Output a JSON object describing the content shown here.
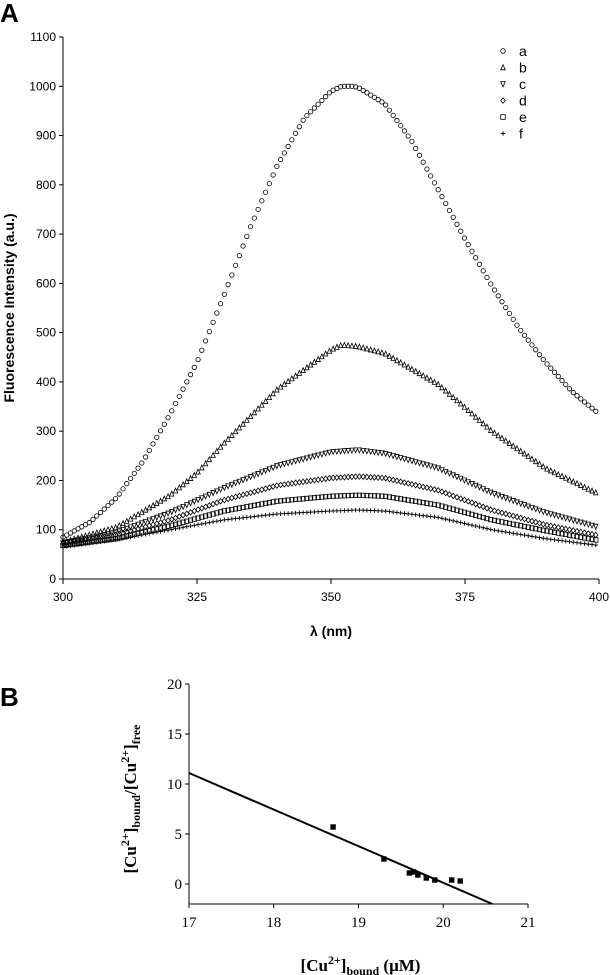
{
  "chart_data": [
    {
      "panel": "A",
      "type": "scatter",
      "xlabel": "λ (nm)",
      "ylabel": "Fluorescence Intensity (a.u.)",
      "xlim": [
        300,
        400
      ],
      "ylim": [
        0,
        1100
      ],
      "xticks": [
        300,
        325,
        350,
        375,
        400
      ],
      "yticks": [
        0,
        100,
        200,
        300,
        400,
        500,
        600,
        700,
        800,
        900,
        1000,
        1100
      ],
      "grid": false,
      "legend_position": "top-right",
      "series": [
        {
          "name": "a",
          "marker": "circle",
          "x": [
            300,
            305,
            310,
            315,
            320,
            325,
            330,
            335,
            340,
            345,
            350,
            352,
            354,
            355,
            360,
            365,
            370,
            375,
            380,
            385,
            390,
            395,
            400
          ],
          "y": [
            85,
            115,
            165,
            240,
            335,
            440,
            575,
            715,
            840,
            935,
            990,
            1000,
            1000,
            998,
            965,
            890,
            790,
            690,
            595,
            510,
            440,
            380,
            335
          ]
        },
        {
          "name": "b",
          "marker": "triangle-up",
          "x": [
            300,
            310,
            320,
            325,
            330,
            340,
            350,
            352,
            355,
            360,
            370,
            375,
            380,
            390,
            400
          ],
          "y": [
            75,
            105,
            170,
            215,
            275,
            385,
            465,
            475,
            472,
            458,
            395,
            348,
            300,
            225,
            172
          ]
        },
        {
          "name": "c",
          "marker": "triangle-down",
          "x": [
            300,
            310,
            320,
            330,
            340,
            350,
            355,
            360,
            370,
            380,
            390,
            400
          ],
          "y": [
            73,
            95,
            135,
            185,
            230,
            258,
            262,
            255,
            225,
            175,
            135,
            105
          ]
        },
        {
          "name": "d",
          "marker": "diamond",
          "x": [
            300,
            310,
            320,
            330,
            340,
            350,
            355,
            360,
            370,
            380,
            390,
            400
          ],
          "y": [
            72,
            90,
            120,
            160,
            190,
            205,
            208,
            205,
            180,
            140,
            110,
            88
          ]
        },
        {
          "name": "e",
          "marker": "square",
          "x": [
            300,
            310,
            320,
            330,
            340,
            350,
            355,
            360,
            370,
            380,
            390,
            400
          ],
          "y": [
            68,
            82,
            108,
            138,
            158,
            168,
            170,
            168,
            150,
            120,
            98,
            78
          ]
        },
        {
          "name": "f",
          "marker": "plus",
          "x": [
            300,
            310,
            320,
            330,
            340,
            350,
            355,
            360,
            370,
            380,
            390,
            400
          ],
          "y": [
            65,
            80,
            100,
            120,
            132,
            138,
            140,
            138,
            125,
            100,
            82,
            68
          ]
        }
      ]
    },
    {
      "panel": "B",
      "type": "scatter",
      "xlabel_parts": {
        "base": "[Cu",
        "sup": "2+",
        "close": "]",
        "sub": "bound",
        "unit": "(μM)"
      },
      "ylabel_parts": {
        "a": "[Cu",
        "sup1": "2+",
        "b": "]",
        "sub1": "bound",
        "c": "/[Cu",
        "sup2": "2+",
        "d": "]",
        "sub2": "free"
      },
      "xlim": [
        17,
        21
      ],
      "ylim": [
        -2,
        20
      ],
      "xticks": [
        17,
        18,
        19,
        20,
        21
      ],
      "yticks": [
        0,
        5,
        10,
        15,
        20
      ],
      "grid": false,
      "points": {
        "x": [
          18.7,
          19.3,
          19.6,
          19.65,
          19.7,
          19.8,
          19.9,
          20.1,
          20.2
        ],
        "y": [
          5.7,
          2.5,
          1.1,
          1.2,
          0.9,
          0.6,
          0.4,
          0.4,
          0.3
        ]
      },
      "fit_line": {
        "x": [
          17.0,
          20.58
        ],
        "y": [
          11.1,
          -2.0
        ]
      }
    }
  ]
}
